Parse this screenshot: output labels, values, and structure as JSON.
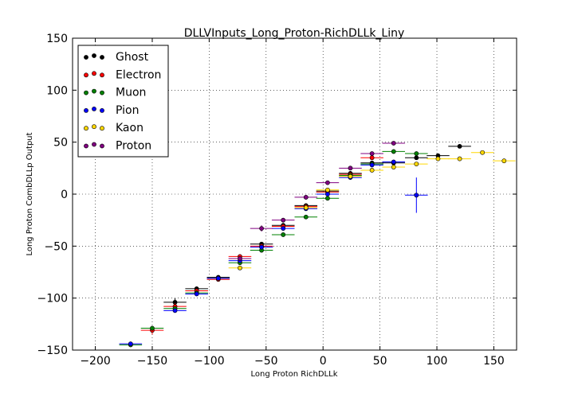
{
  "chart_data": {
    "type": "scatter",
    "title": "DLLVInputs_Long_Proton-RichDLLk_Liny",
    "xlabel": "Long Proton RichDLLk",
    "ylabel": "Long Proton CombDLLp Output",
    "xlim": [
      -220,
      170
    ],
    "ylim": [
      -150,
      150
    ],
    "xticks": [
      -200,
      -150,
      -100,
      -50,
      0,
      50,
      100,
      150
    ],
    "yticks": [
      -150,
      -100,
      -50,
      0,
      50,
      100,
      150
    ],
    "xtick_labels": [
      "−200",
      "−150",
      "−100",
      "−50",
      "0",
      "50",
      "100",
      "150"
    ],
    "ytick_labels": [
      "−150",
      "−100",
      "−50",
      "0",
      "50",
      "100",
      "150"
    ],
    "grid": true,
    "legend_position": "top-left",
    "series": [
      {
        "name": "Ghost",
        "color": "#000000",
        "points": [
          {
            "x": -130,
            "y": -104,
            "xerr": 10,
            "yerr": 4
          },
          {
            "x": -111,
            "y": -91,
            "xerr": 10,
            "yerr": 2
          },
          {
            "x": -92,
            "y": -80,
            "xerr": 10,
            "yerr": 2
          },
          {
            "x": -54,
            "y": -48,
            "xerr": 10,
            "yerr": 2
          },
          {
            "x": -35,
            "y": -30,
            "xerr": 10,
            "yerr": 2
          },
          {
            "x": -15,
            "y": -11,
            "xerr": 10,
            "yerr": 2
          },
          {
            "x": 4,
            "y": 3,
            "xerr": 10,
            "yerr": 2
          },
          {
            "x": 24,
            "y": 20,
            "xerr": 10,
            "yerr": 2
          },
          {
            "x": 43,
            "y": 30,
            "xerr": 10,
            "yerr": 2
          },
          {
            "x": 62,
            "y": 30,
            "xerr": 10,
            "yerr": 2
          },
          {
            "x": 82,
            "y": 35,
            "xerr": 10,
            "yerr": 2
          },
          {
            "x": 101,
            "y": 37,
            "xerr": 10,
            "yerr": 2
          },
          {
            "x": 120,
            "y": 46,
            "xerr": 10,
            "yerr": 2
          }
        ]
      },
      {
        "name": "Electron",
        "color": "#ff0000",
        "points": [
          {
            "x": -150,
            "y": -131,
            "xerr": 10,
            "yerr": 4
          },
          {
            "x": -130,
            "y": -108,
            "xerr": 10,
            "yerr": 3
          },
          {
            "x": -111,
            "y": -93,
            "xerr": 10,
            "yerr": 2
          },
          {
            "x": -92,
            "y": -82,
            "xerr": 10,
            "yerr": 2
          },
          {
            "x": -73,
            "y": -60,
            "xerr": 10,
            "yerr": 2
          },
          {
            "x": -54,
            "y": -50,
            "xerr": 10,
            "yerr": 2
          },
          {
            "x": -35,
            "y": -31,
            "xerr": 10,
            "yerr": 2
          },
          {
            "x": -15,
            "y": -12,
            "xerr": 10,
            "yerr": 2
          },
          {
            "x": 4,
            "y": 2,
            "xerr": 10,
            "yerr": 2
          },
          {
            "x": 24,
            "y": 19,
            "xerr": 10,
            "yerr": 2
          },
          {
            "x": 43,
            "y": 35,
            "xerr": 10,
            "yerr": 2
          }
        ]
      },
      {
        "name": "Muon",
        "color": "#008000",
        "points": [
          {
            "x": -169,
            "y": -145,
            "xerr": 10,
            "yerr": 2
          },
          {
            "x": -150,
            "y": -129,
            "xerr": 10,
            "yerr": 2
          },
          {
            "x": -130,
            "y": -110,
            "xerr": 10,
            "yerr": 2
          },
          {
            "x": -111,
            "y": -95,
            "xerr": 10,
            "yerr": 2
          },
          {
            "x": -92,
            "y": -81,
            "xerr": 10,
            "yerr": 2
          },
          {
            "x": -73,
            "y": -66,
            "xerr": 10,
            "yerr": 2
          },
          {
            "x": -54,
            "y": -54,
            "xerr": 10,
            "yerr": 2
          },
          {
            "x": -35,
            "y": -39,
            "xerr": 10,
            "yerr": 2
          },
          {
            "x": -15,
            "y": -22,
            "xerr": 10,
            "yerr": 2
          },
          {
            "x": 4,
            "y": -4,
            "xerr": 10,
            "yerr": 2
          },
          {
            "x": 24,
            "y": 18,
            "xerr": 10,
            "yerr": 2
          },
          {
            "x": 43,
            "y": 29,
            "xerr": 10,
            "yerr": 2
          },
          {
            "x": 62,
            "y": 41,
            "xerr": 10,
            "yerr": 2
          },
          {
            "x": 82,
            "y": 39,
            "xerr": 10,
            "yerr": 2
          }
        ]
      },
      {
        "name": "Pion",
        "color": "#0000ff",
        "points": [
          {
            "x": -169,
            "y": -144,
            "xerr": 10,
            "yerr": 2
          },
          {
            "x": -130,
            "y": -112,
            "xerr": 10,
            "yerr": 2
          },
          {
            "x": -111,
            "y": -96,
            "xerr": 10,
            "yerr": 2
          },
          {
            "x": -92,
            "y": -81,
            "xerr": 10,
            "yerr": 2
          },
          {
            "x": -73,
            "y": -64,
            "xerr": 10,
            "yerr": 2
          },
          {
            "x": -54,
            "y": -51,
            "xerr": 10,
            "yerr": 2
          },
          {
            "x": -35,
            "y": -33,
            "xerr": 10,
            "yerr": 2
          },
          {
            "x": -15,
            "y": -14,
            "xerr": 10,
            "yerr": 2
          },
          {
            "x": 4,
            "y": 0,
            "xerr": 10,
            "yerr": 2
          },
          {
            "x": 24,
            "y": 16,
            "xerr": 10,
            "yerr": 2
          },
          {
            "x": 43,
            "y": 28,
            "xerr": 10,
            "yerr": 2
          },
          {
            "x": 62,
            "y": 31,
            "xerr": 10,
            "yerr": 2
          },
          {
            "x": 82,
            "y": -1,
            "xerr": 10,
            "yerr": 17
          }
        ]
      },
      {
        "name": "Kaon",
        "color": "#ffd700",
        "points": [
          {
            "x": -73,
            "y": -71,
            "xerr": 10,
            "yerr": 2
          },
          {
            "x": -15,
            "y": -13,
            "xerr": 10,
            "yerr": 2
          },
          {
            "x": 4,
            "y": 4,
            "xerr": 10,
            "yerr": 2
          },
          {
            "x": 24,
            "y": 17,
            "xerr": 10,
            "yerr": 2
          },
          {
            "x": 43,
            "y": 23,
            "xerr": 10,
            "yerr": 2
          },
          {
            "x": 62,
            "y": 26,
            "xerr": 10,
            "yerr": 2
          },
          {
            "x": 82,
            "y": 29,
            "xerr": 10,
            "yerr": 2
          },
          {
            "x": 101,
            "y": 34,
            "xerr": 10,
            "yerr": 2
          },
          {
            "x": 120,
            "y": 34,
            "xerr": 10,
            "yerr": 2
          },
          {
            "x": 140,
            "y": 40,
            "xerr": 10,
            "yerr": 2
          },
          {
            "x": 159,
            "y": 32,
            "xerr": 10,
            "yerr": 2
          }
        ]
      },
      {
        "name": "Proton",
        "color": "#800080",
        "points": [
          {
            "x": -73,
            "y": -62,
            "xerr": 10,
            "yerr": 2
          },
          {
            "x": -54,
            "y": -33,
            "xerr": 10,
            "yerr": 3
          },
          {
            "x": -35,
            "y": -25,
            "xerr": 10,
            "yerr": 2
          },
          {
            "x": -15,
            "y": -3,
            "xerr": 10,
            "yerr": 2
          },
          {
            "x": 4,
            "y": 11,
            "xerr": 10,
            "yerr": 2
          },
          {
            "x": 24,
            "y": 25,
            "xerr": 10,
            "yerr": 2
          },
          {
            "x": 43,
            "y": 39,
            "xerr": 10,
            "yerr": 2
          },
          {
            "x": 62,
            "y": 49,
            "xerr": 10,
            "yerr": 2
          }
        ]
      }
    ]
  }
}
